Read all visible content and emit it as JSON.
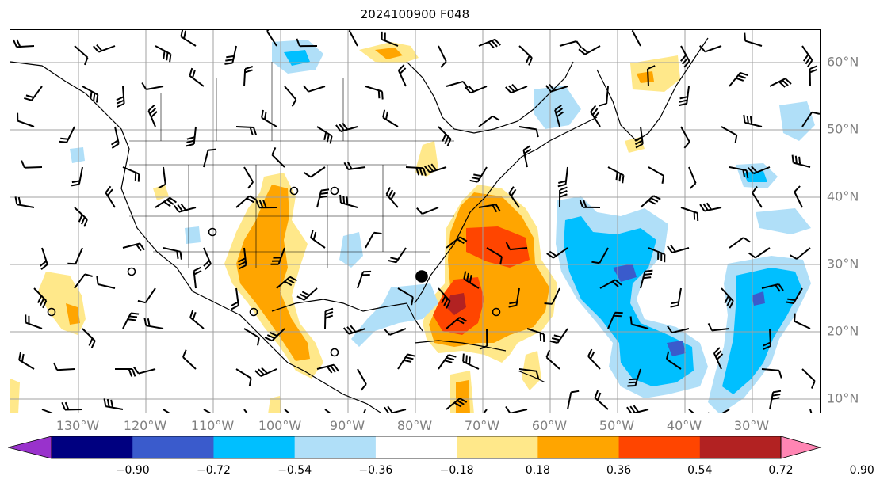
{
  "title": "2024100900 F048",
  "lon_labels": [
    "130°W",
    "120°W",
    "110°W",
    "100°W",
    "90°W",
    "80°W",
    "70°W",
    "60°W",
    "50°W",
    "40°W",
    "30°W"
  ],
  "lat_labels": [
    "60°N",
    "50°N",
    "40°N",
    "30°N",
    "20°N",
    "10°N"
  ],
  "colorbar": {
    "ticks": [
      "−0.90",
      "−0.72",
      "−0.54",
      "−0.36",
      "−0.18",
      "0.18",
      "0.36",
      "0.54",
      "0.72",
      "0.90"
    ],
    "colors": [
      "#9932cc",
      "#000080",
      "#3a5bcc",
      "#00bfff",
      "#b0dff8",
      "#ffffff",
      "#ffe88a",
      "#ffa500",
      "#ff4500",
      "#b22222",
      "#ff85b3"
    ]
  },
  "colors": {
    "grid": "#a0a0a0",
    "label": "#808080",
    "pos1": "#ffe88a",
    "pos2": "#ffa500",
    "pos3": "#ff4500",
    "pos4": "#b22222",
    "neg1": "#b0dff8",
    "neg2": "#00bfff",
    "neg3": "#3a5bcc",
    "neg4": "#9932cc"
  }
}
